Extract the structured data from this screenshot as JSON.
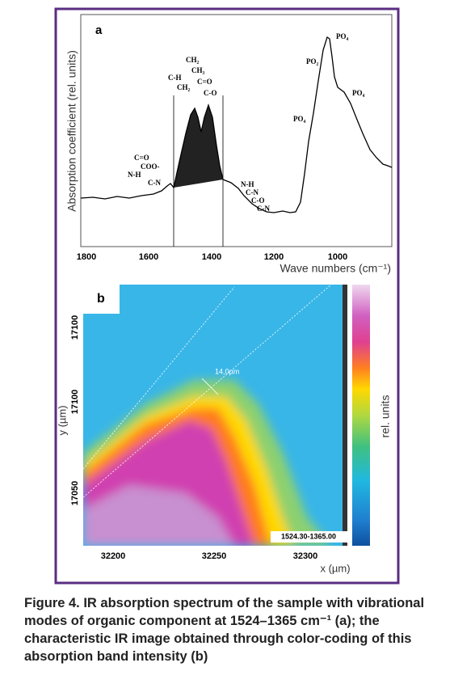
{
  "figure": {
    "panel_a": {
      "label": "a",
      "y_axis_label": "Absorption coefficient (rel. units)",
      "x_axis_label": "Wave numbers (cm⁻¹)",
      "x_ticks": [
        "1800",
        "1600",
        "1400",
        "1200",
        "1000"
      ],
      "annotations": [
        "C=O",
        "COO-",
        "N-H",
        "C-N",
        "C-H",
        "CH₂",
        "CH₂",
        "CH₃",
        "C=O",
        "C-O",
        "N-H",
        "C-N",
        "C-O",
        "C-N",
        "PO₄",
        "PO₂",
        "PO₄",
        "PO₄"
      ]
    },
    "panel_b": {
      "label": "b",
      "y_axis_label": "y (µm)",
      "x_axis_label": "x (µm)",
      "colorbar_label": "rel. units",
      "y_ticks": [
        "17100",
        "17100",
        "17050"
      ],
      "x_ticks": [
        "32200",
        "32250",
        "32300"
      ],
      "distance_label": "14,0µm",
      "range_label": "1524.30-1365.00"
    },
    "caption": "Figure 4. IR absorption spectrum of the sample with vibrational modes of organic component at 1524–1365 cm⁻¹ (a); the characteristic IR image obtained through color-coding of this absorption band intensity (b)"
  }
}
